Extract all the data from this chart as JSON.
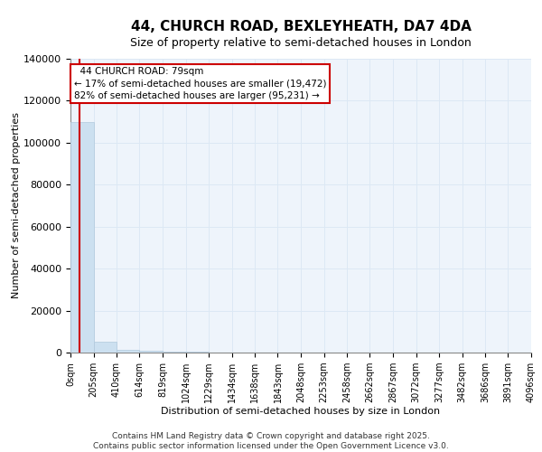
{
  "title1": "44, CHURCH ROAD, BEXLEYHEATH, DA7 4DA",
  "title2": "Size of property relative to semi-detached houses in London",
  "xlabel": "Distribution of semi-detached houses by size in London",
  "ylabel": "Number of semi-detached properties",
  "annotation_line1": "44 CHURCH ROAD: 79sqm",
  "annotation_line2": "← 17% of semi-detached houses are smaller (19,472)",
  "annotation_line3": "82% of semi-detached houses are larger (95,231) →",
  "bin_edges": [
    0,
    205,
    410,
    614,
    819,
    1024,
    1229,
    1434,
    1638,
    1843,
    2048,
    2253,
    2458,
    2662,
    2867,
    3072,
    3277,
    3482,
    3686,
    3891,
    4096
  ],
  "bar_heights": [
    110000,
    5000,
    1500,
    700,
    400,
    250,
    170,
    120,
    90,
    70,
    55,
    42,
    34,
    27,
    22,
    17,
    13,
    10,
    8,
    6
  ],
  "bar_color": "#cce0f0",
  "bar_edge_color": "#b0c8dc",
  "vline_color": "#cc0000",
  "vline_x": 79,
  "ylim": [
    0,
    140000
  ],
  "yticks": [
    0,
    20000,
    40000,
    60000,
    80000,
    100000,
    120000,
    140000
  ],
  "grid_color": "#dce8f4",
  "footer": "Contains HM Land Registry data © Crown copyright and database right 2025.\nContains public sector information licensed under the Open Government Licence v3.0.",
  "annotation_box_edgecolor": "#cc0000",
  "background_color": "#eef4fb",
  "title1_fontsize": 11,
  "title2_fontsize": 9,
  "xlabel_fontsize": 8,
  "ylabel_fontsize": 8,
  "ytick_fontsize": 8,
  "xtick_fontsize": 7,
  "footer_fontsize": 6.5
}
